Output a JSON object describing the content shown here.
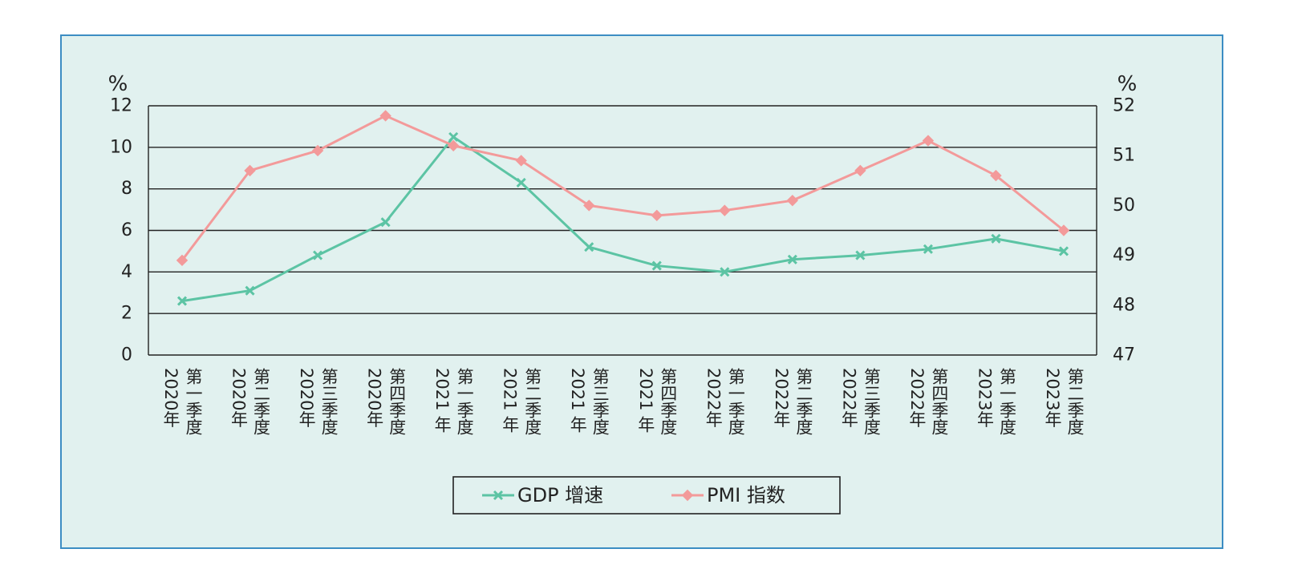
{
  "chart_data": {
    "type": "line",
    "categories": [
      "2020年第一季度",
      "2020年第二季度",
      "2020年第三季度",
      "2020年第四季度",
      "2021年第一季度",
      "2021年第二季度",
      "2021年第三季度",
      "2021年第四季度",
      "2022年第一季度",
      "2022年第二季度",
      "2022年第三季度",
      "2022年第四季度",
      "2023年第一季度",
      "2023年第二季度"
    ],
    "category_lines": [
      [
        "2020年",
        "第一季度"
      ],
      [
        "2020年",
        "第二季度"
      ],
      [
        "2020年",
        "第三季度"
      ],
      [
        "2020年",
        "第四季度"
      ],
      [
        "2021 年",
        "第一季度"
      ],
      [
        "2021 年",
        "第二季度"
      ],
      [
        "2021 年",
        "第三季度"
      ],
      [
        "2021 年",
        "第四季度"
      ],
      [
        "2022年",
        "第一季度"
      ],
      [
        "2022年",
        "第二季度"
      ],
      [
        "2022年",
        "第三季度"
      ],
      [
        "2022年",
        "第四季度"
      ],
      [
        "2023年",
        "第一季度"
      ],
      [
        "2023年",
        "第二季度"
      ]
    ],
    "series": [
      {
        "name": "GDP 增速",
        "axis": "left",
        "color": "#5cc4a4",
        "marker": "x",
        "values": [
          2.6,
          3.1,
          4.8,
          6.4,
          10.5,
          8.3,
          5.2,
          4.3,
          4.0,
          4.6,
          4.8,
          5.1,
          5.6,
          5.0
        ]
      },
      {
        "name": "PMI 指数",
        "axis": "right",
        "color": "#f39a9a",
        "marker": "diamond",
        "values": [
          48.9,
          50.7,
          51.1,
          51.8,
          51.2,
          50.9,
          50.0,
          49.8,
          49.9,
          50.1,
          50.7,
          51.3,
          50.6,
          49.5
        ]
      }
    ],
    "left_axis": {
      "unit": "%",
      "ticks": [
        "0",
        "2",
        "4",
        "6",
        "8",
        "10",
        "12"
      ],
      "range": [
        0,
        12
      ]
    },
    "right_axis": {
      "unit": "%",
      "ticks": [
        "47",
        "48",
        "49",
        "50",
        "51",
        "52"
      ],
      "range": [
        47,
        52
      ]
    },
    "grid": true,
    "legend_position": "bottom-center",
    "colors": {
      "background": "#e1f1ef",
      "frame_border": "#3c8dc3",
      "gridline": "#222222"
    }
  }
}
